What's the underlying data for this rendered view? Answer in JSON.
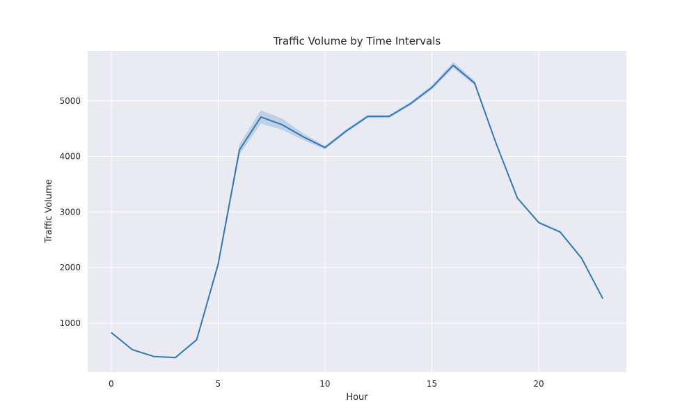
{
  "chart_data": {
    "type": "line",
    "title": "Traffic Volume by Time Intervals",
    "xlabel": "Hour",
    "ylabel": "Traffic Volume",
    "xlim": [
      -1.1,
      24.1
    ],
    "ylim": [
      120,
      5900
    ],
    "xticks": [
      0,
      5,
      10,
      15,
      20
    ],
    "yticks": [
      1000,
      2000,
      3000,
      4000,
      5000
    ],
    "grid": true,
    "legend": "none",
    "colors": {
      "line": "#2f7ab5",
      "band": "#8fb4d6",
      "plot_bg": "#eaeaf2",
      "grid": "#ffffff"
    },
    "series": [
      {
        "x": [
          0,
          1,
          2,
          3,
          4,
          5,
          6,
          7,
          8,
          9,
          10,
          11,
          12,
          13,
          14,
          15,
          16,
          17,
          18,
          19,
          20,
          21,
          22,
          23
        ],
        "values": [
          830,
          520,
          400,
          380,
          700,
          2060,
          4120,
          4710,
          4570,
          4350,
          4160,
          4460,
          4720,
          4720,
          4950,
          5240,
          5640,
          5320,
          4240,
          3250,
          2810,
          2640,
          2170,
          1440
        ],
        "ci_lower": [
          815,
          505,
          390,
          370,
          685,
          2000,
          4030,
          4590,
          4480,
          4290,
          4130,
          4430,
          4690,
          4690,
          4920,
          5200,
          5590,
          5280,
          4220,
          3230,
          2790,
          2620,
          2150,
          1420
        ],
        "ci_upper": [
          845,
          535,
          410,
          390,
          715,
          2110,
          4220,
          4830,
          4680,
          4410,
          4190,
          4490,
          4750,
          4750,
          4980,
          5280,
          5700,
          5370,
          4260,
          3270,
          2830,
          2660,
          2190,
          1460
        ]
      }
    ]
  }
}
